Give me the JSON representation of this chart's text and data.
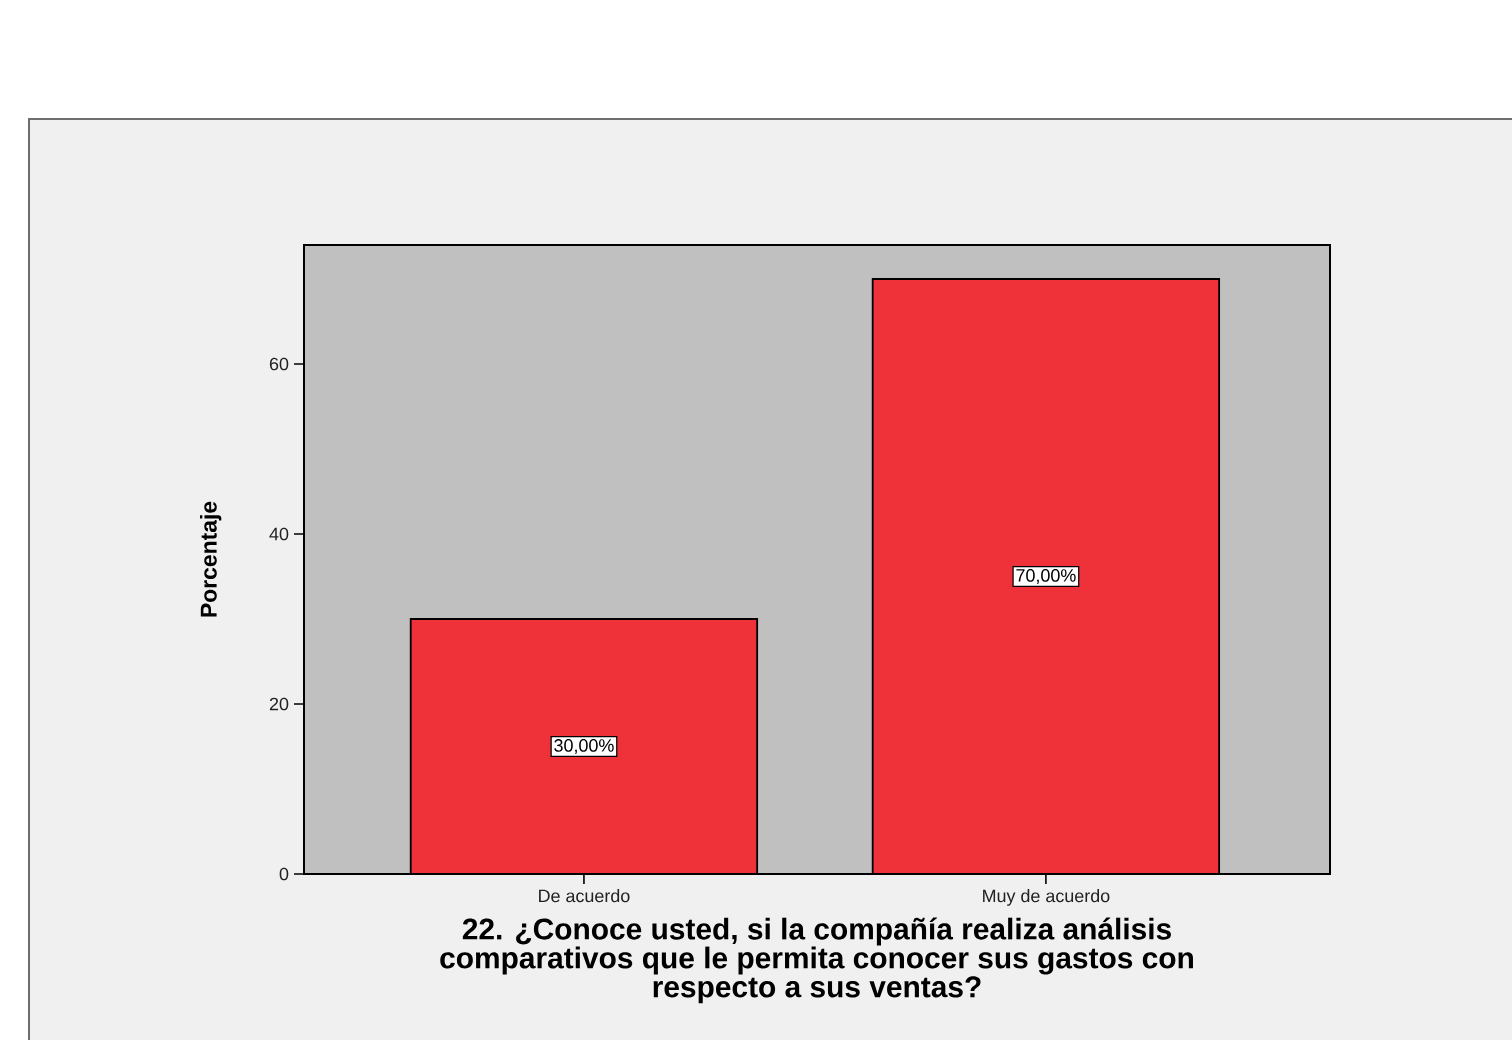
{
  "chart_data": {
    "type": "bar",
    "xlabel": "22. ¿Conoce usted, si la compañía realiza análisis comparativos que le permita conocer sus gastos con respecto a sus ventas?",
    "ylabel": "Porcentaje",
    "categories": [
      "De acuerdo",
      "Muy de acuerdo"
    ],
    "values": [
      30,
      70
    ],
    "color": "#ef323a",
    "value_labels": [
      "30,00%",
      "70,00%"
    ],
    "ylim": [
      0,
      74
    ],
    "yticks": [
      0,
      20,
      40,
      60
    ]
  }
}
